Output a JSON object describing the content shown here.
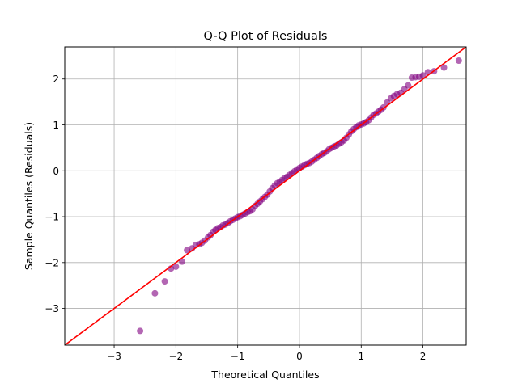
{
  "chart_data": {
    "type": "scatter",
    "title": "Q-Q Plot of Residuals",
    "xlabel": "Theoretical Quantiles",
    "ylabel": "Sample Quantiles (Residuals)",
    "xlim": [
      -3.8,
      2.7
    ],
    "ylim": [
      -3.8,
      2.7
    ],
    "xticks": [
      "−3",
      "−2",
      "−1",
      "0",
      "1",
      "2"
    ],
    "yticks": [
      "−3",
      "−2",
      "−1",
      "0",
      "1",
      "2"
    ],
    "grid": true,
    "legend": "none",
    "point_color": "#800080",
    "line_color": "#ff0000",
    "reference_line": {
      "slope": 1,
      "intercept": 0
    },
    "points": [
      [
        -2.58,
        -3.49
      ],
      [
        -2.34,
        -2.67
      ],
      [
        -2.18,
        -2.41
      ],
      [
        -2.08,
        -2.13
      ],
      [
        -2.0,
        -2.09
      ],
      [
        -1.9,
        -1.98
      ],
      [
        -1.82,
        -1.73
      ],
      [
        -1.74,
        -1.69
      ],
      [
        -1.68,
        -1.62
      ],
      [
        -1.62,
        -1.6
      ],
      [
        -1.58,
        -1.57
      ],
      [
        -1.53,
        -1.52
      ],
      [
        -1.48,
        -1.45
      ],
      [
        -1.44,
        -1.4
      ],
      [
        -1.4,
        -1.33
      ],
      [
        -1.36,
        -1.29
      ],
      [
        -1.32,
        -1.25
      ],
      [
        -1.28,
        -1.23
      ],
      [
        -1.24,
        -1.19
      ],
      [
        -1.2,
        -1.17
      ],
      [
        -1.16,
        -1.14
      ],
      [
        -1.12,
        -1.1
      ],
      [
        -1.08,
        -1.07
      ],
      [
        -1.04,
        -1.04
      ],
      [
        -1.0,
        -1.01
      ],
      [
        -0.96,
        -0.99
      ],
      [
        -0.92,
        -0.96
      ],
      [
        -0.88,
        -0.93
      ],
      [
        -0.84,
        -0.9
      ],
      [
        -0.8,
        -0.88
      ],
      [
        -0.76,
        -0.84
      ],
      [
        -0.72,
        -0.77
      ],
      [
        -0.68,
        -0.72
      ],
      [
        -0.64,
        -0.67
      ],
      [
        -0.6,
        -0.62
      ],
      [
        -0.56,
        -0.57
      ],
      [
        -0.52,
        -0.52
      ],
      [
        -0.48,
        -0.45
      ],
      [
        -0.44,
        -0.38
      ],
      [
        -0.4,
        -0.32
      ],
      [
        -0.36,
        -0.27
      ],
      [
        -0.32,
        -0.24
      ],
      [
        -0.28,
        -0.2
      ],
      [
        -0.24,
        -0.16
      ],
      [
        -0.2,
        -0.13
      ],
      [
        -0.16,
        -0.09
      ],
      [
        -0.12,
        -0.05
      ],
      [
        -0.08,
        -0.01
      ],
      [
        -0.04,
        0.03
      ],
      [
        0.0,
        0.06
      ],
      [
        0.04,
        0.09
      ],
      [
        0.08,
        0.12
      ],
      [
        0.12,
        0.15
      ],
      [
        0.16,
        0.17
      ],
      [
        0.2,
        0.2
      ],
      [
        0.24,
        0.24
      ],
      [
        0.28,
        0.28
      ],
      [
        0.32,
        0.32
      ],
      [
        0.36,
        0.36
      ],
      [
        0.4,
        0.39
      ],
      [
        0.44,
        0.42
      ],
      [
        0.48,
        0.47
      ],
      [
        0.52,
        0.5
      ],
      [
        0.56,
        0.53
      ],
      [
        0.6,
        0.55
      ],
      [
        0.64,
        0.59
      ],
      [
        0.68,
        0.62
      ],
      [
        0.72,
        0.66
      ],
      [
        0.76,
        0.72
      ],
      [
        0.8,
        0.79
      ],
      [
        0.84,
        0.86
      ],
      [
        0.88,
        0.91
      ],
      [
        0.92,
        0.95
      ],
      [
        0.96,
        0.99
      ],
      [
        1.0,
        1.01
      ],
      [
        1.04,
        1.03
      ],
      [
        1.08,
        1.06
      ],
      [
        1.12,
        1.1
      ],
      [
        1.16,
        1.16
      ],
      [
        1.2,
        1.22
      ],
      [
        1.24,
        1.25
      ],
      [
        1.28,
        1.29
      ],
      [
        1.32,
        1.33
      ],
      [
        1.36,
        1.38
      ],
      [
        1.42,
        1.49
      ],
      [
        1.48,
        1.58
      ],
      [
        1.53,
        1.63
      ],
      [
        1.58,
        1.67
      ],
      [
        1.64,
        1.7
      ],
      [
        1.7,
        1.78
      ],
      [
        1.76,
        1.86
      ],
      [
        1.82,
        2.03
      ],
      [
        1.88,
        2.04
      ],
      [
        1.94,
        2.05
      ],
      [
        2.0,
        2.08
      ],
      [
        2.08,
        2.15
      ],
      [
        2.18,
        2.17
      ],
      [
        2.34,
        2.25
      ],
      [
        2.58,
        2.4
      ]
    ]
  }
}
